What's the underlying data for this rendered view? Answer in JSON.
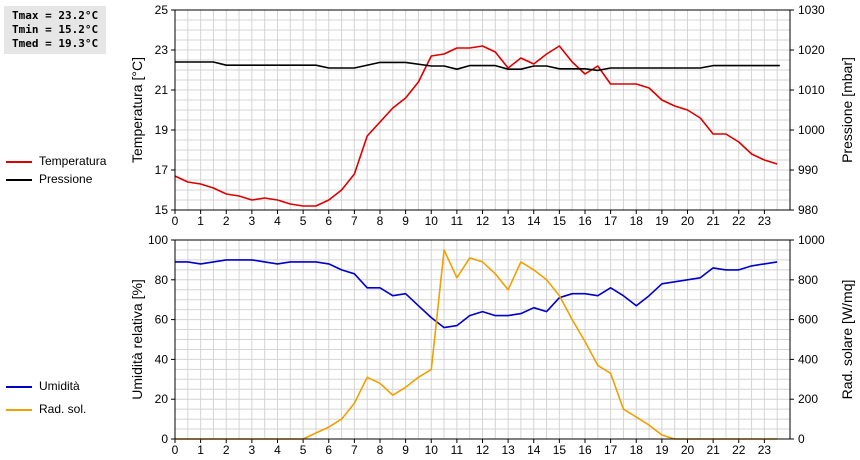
{
  "stats": {
    "tmax": "Tmax = 23.2°C",
    "tmin": "Tmin = 15.2°C",
    "tmed": "Tmed = 19.3°C"
  },
  "colors": {
    "temperature": "#dd0000",
    "pressure": "#000000",
    "humidity": "#0000cc",
    "solar": "#f0a000",
    "grid": "#d4d4d4"
  },
  "chart_data": [
    {
      "type": "line",
      "xlim": [
        0,
        24
      ],
      "x_ticks": [
        0,
        1,
        2,
        3,
        4,
        5,
        6,
        7,
        8,
        9,
        10,
        11,
        12,
        13,
        14,
        15,
        16,
        17,
        18,
        19,
        20,
        21,
        22,
        23
      ],
      "ylabel": "Temperatura [°C]",
      "y2label": "Pressione [mbar]",
      "ylim": [
        15,
        25
      ],
      "y_ticks": [
        15,
        17,
        19,
        21,
        23,
        25
      ],
      "y2lim": [
        980,
        1030
      ],
      "y2_ticks": [
        980,
        990,
        1000,
        1010,
        1020,
        1030
      ],
      "grid": true,
      "legend_position": "left",
      "series": [
        {
          "name": "Temperatura",
          "axis": "left",
          "color": "#dd0000",
          "points": [
            [
              0,
              16.7
            ],
            [
              0.5,
              16.4
            ],
            [
              1,
              16.3
            ],
            [
              1.5,
              16.1
            ],
            [
              2,
              15.8
            ],
            [
              2.5,
              15.7
            ],
            [
              3,
              15.5
            ],
            [
              3.5,
              15.6
            ],
            [
              4,
              15.5
            ],
            [
              4.5,
              15.3
            ],
            [
              5,
              15.2
            ],
            [
              5.5,
              15.2
            ],
            [
              6,
              15.5
            ],
            [
              6.5,
              16.0
            ],
            [
              7,
              16.8
            ],
            [
              7.5,
              18.7
            ],
            [
              8,
              19.4
            ],
            [
              8.5,
              20.1
            ],
            [
              9,
              20.6
            ],
            [
              9.5,
              21.4
            ],
            [
              10,
              22.7
            ],
            [
              10.5,
              22.8
            ],
            [
              11,
              23.1
            ],
            [
              11.5,
              23.1
            ],
            [
              12,
              23.2
            ],
            [
              12.5,
              22.9
            ],
            [
              13,
              22.1
            ],
            [
              13.5,
              22.6
            ],
            [
              14,
              22.3
            ],
            [
              14.5,
              22.8
            ],
            [
              15,
              23.2
            ],
            [
              15.5,
              22.4
            ],
            [
              16,
              21.8
            ],
            [
              16.5,
              22.2
            ],
            [
              17,
              21.3
            ],
            [
              17.5,
              21.3
            ],
            [
              18,
              21.3
            ],
            [
              18.5,
              21.1
            ],
            [
              19,
              20.5
            ],
            [
              19.5,
              20.2
            ],
            [
              20,
              20.0
            ],
            [
              20.5,
              19.6
            ],
            [
              21,
              18.8
            ],
            [
              21.5,
              18.8
            ],
            [
              22,
              18.4
            ],
            [
              22.5,
              17.8
            ],
            [
              23,
              17.5
            ],
            [
              23.5,
              17.3
            ]
          ]
        },
        {
          "name": "Pressione",
          "axis": "right",
          "color": "#000000",
          "points": [
            [
              0,
              1017
            ],
            [
              1.5,
              1017
            ],
            [
              2,
              1016.2
            ],
            [
              5.5,
              1016.2
            ],
            [
              6,
              1015.5
            ],
            [
              7,
              1015.5
            ],
            [
              8,
              1016.9
            ],
            [
              9,
              1016.9
            ],
            [
              10,
              1016
            ],
            [
              10.5,
              1016
            ],
            [
              11,
              1015.2
            ],
            [
              11.5,
              1016.1
            ],
            [
              12.5,
              1016.1
            ],
            [
              13,
              1015.2
            ],
            [
              13.5,
              1015.2
            ],
            [
              14,
              1016
            ],
            [
              14.5,
              1016
            ],
            [
              15,
              1015.3
            ],
            [
              16,
              1015.3
            ],
            [
              16.5,
              1014.9
            ],
            [
              17,
              1015.5
            ],
            [
              20.5,
              1015.5
            ],
            [
              21,
              1016.1
            ],
            [
              23.6,
              1016.1
            ]
          ]
        }
      ]
    },
    {
      "type": "line",
      "xlim": [
        0,
        24
      ],
      "x_ticks": [
        0,
        1,
        2,
        3,
        4,
        5,
        6,
        7,
        8,
        9,
        10,
        11,
        12,
        13,
        14,
        15,
        16,
        17,
        18,
        19,
        20,
        21,
        22,
        23
      ],
      "ylabel": "Umidità relativa [%]",
      "y2label": "Rad. solare [W/mq]",
      "ylim": [
        0,
        100
      ],
      "y_ticks": [
        0,
        20,
        40,
        60,
        80,
        100
      ],
      "y2lim": [
        0,
        1000
      ],
      "y2_ticks": [
        0,
        200,
        400,
        600,
        800,
        1000
      ],
      "grid": true,
      "legend_position": "left",
      "series": [
        {
          "name": "Umidità",
          "axis": "left",
          "color": "#0000cc",
          "points": [
            [
              0,
              89
            ],
            [
              0.5,
              89
            ],
            [
              1,
              88
            ],
            [
              1.5,
              89
            ],
            [
              2,
              90
            ],
            [
              2.5,
              90
            ],
            [
              3,
              90
            ],
            [
              3.5,
              89
            ],
            [
              4,
              88
            ],
            [
              4.5,
              89
            ],
            [
              5,
              89
            ],
            [
              5.5,
              89
            ],
            [
              6,
              88
            ],
            [
              6.5,
              85
            ],
            [
              7,
              83
            ],
            [
              7.5,
              76
            ],
            [
              8,
              76
            ],
            [
              8.5,
              72
            ],
            [
              9,
              73
            ],
            [
              9.5,
              67
            ],
            [
              10,
              61
            ],
            [
              10.5,
              56
            ],
            [
              11,
              57
            ],
            [
              11.5,
              62
            ],
            [
              12,
              64
            ],
            [
              12.5,
              62
            ],
            [
              13,
              62
            ],
            [
              13.5,
              63
            ],
            [
              14,
              66
            ],
            [
              14.5,
              64
            ],
            [
              15,
              71
            ],
            [
              15.5,
              73
            ],
            [
              16,
              73
            ],
            [
              16.5,
              72
            ],
            [
              17,
              76
            ],
            [
              17.5,
              72
            ],
            [
              18,
              67
            ],
            [
              18.5,
              72
            ],
            [
              19,
              78
            ],
            [
              19.5,
              79
            ],
            [
              20,
              80
            ],
            [
              20.5,
              81
            ],
            [
              21,
              86
            ],
            [
              21.5,
              85
            ],
            [
              22,
              85
            ],
            [
              22.5,
              87
            ],
            [
              23,
              88
            ],
            [
              23.5,
              89
            ]
          ]
        },
        {
          "name": "Rad. sol.",
          "axis": "right",
          "color": "#f0a000",
          "points": [
            [
              0,
              0
            ],
            [
              0.5,
              0
            ],
            [
              1,
              0
            ],
            [
              1.5,
              0
            ],
            [
              2,
              0
            ],
            [
              2.5,
              0
            ],
            [
              3,
              0
            ],
            [
              3.5,
              0
            ],
            [
              4,
              0
            ],
            [
              4.5,
              0
            ],
            [
              5,
              0
            ],
            [
              5.5,
              30
            ],
            [
              6,
              60
            ],
            [
              6.5,
              100
            ],
            [
              7,
              180
            ],
            [
              7.5,
              310
            ],
            [
              8,
              280
            ],
            [
              8.5,
              220
            ],
            [
              9,
              260
            ],
            [
              9.5,
              310
            ],
            [
              10,
              350
            ],
            [
              10.5,
              950
            ],
            [
              11,
              810
            ],
            [
              11.5,
              910
            ],
            [
              12,
              890
            ],
            [
              12.5,
              830
            ],
            [
              13,
              750
            ],
            [
              13.5,
              890
            ],
            [
              14,
              850
            ],
            [
              14.5,
              800
            ],
            [
              15,
              720
            ],
            [
              15.5,
              600
            ],
            [
              16,
              490
            ],
            [
              16.5,
              370
            ],
            [
              17,
              330
            ],
            [
              17.5,
              150
            ],
            [
              18,
              110
            ],
            [
              18.5,
              70
            ],
            [
              19,
              20
            ],
            [
              19.5,
              0
            ],
            [
              20,
              0
            ],
            [
              20.5,
              0
            ],
            [
              21,
              0
            ],
            [
              21.5,
              0
            ],
            [
              22,
              0
            ],
            [
              22.5,
              0
            ],
            [
              23,
              0
            ],
            [
              23.5,
              0
            ]
          ]
        }
      ]
    }
  ]
}
